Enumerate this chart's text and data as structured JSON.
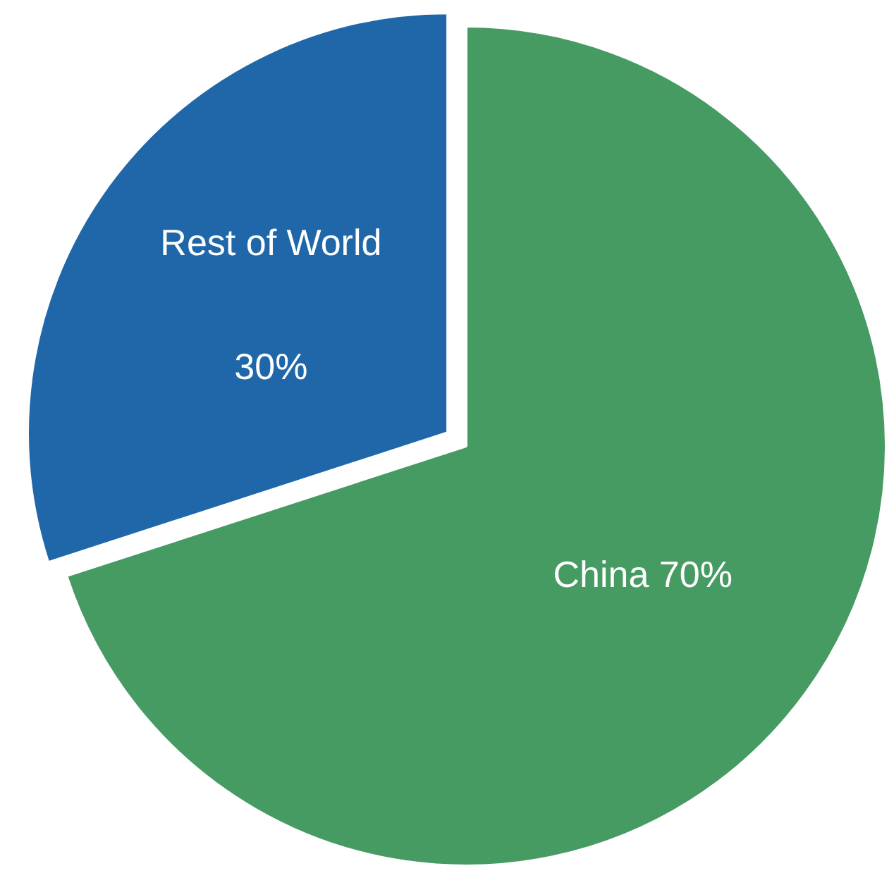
{
  "chart_data": {
    "type": "pie",
    "categories": [
      "China",
      "Rest of World"
    ],
    "values": [
      70,
      30
    ],
    "colors": [
      "#469b62",
      "#1f67a8"
    ],
    "value_labels": [
      "70%",
      "30%"
    ]
  }
}
